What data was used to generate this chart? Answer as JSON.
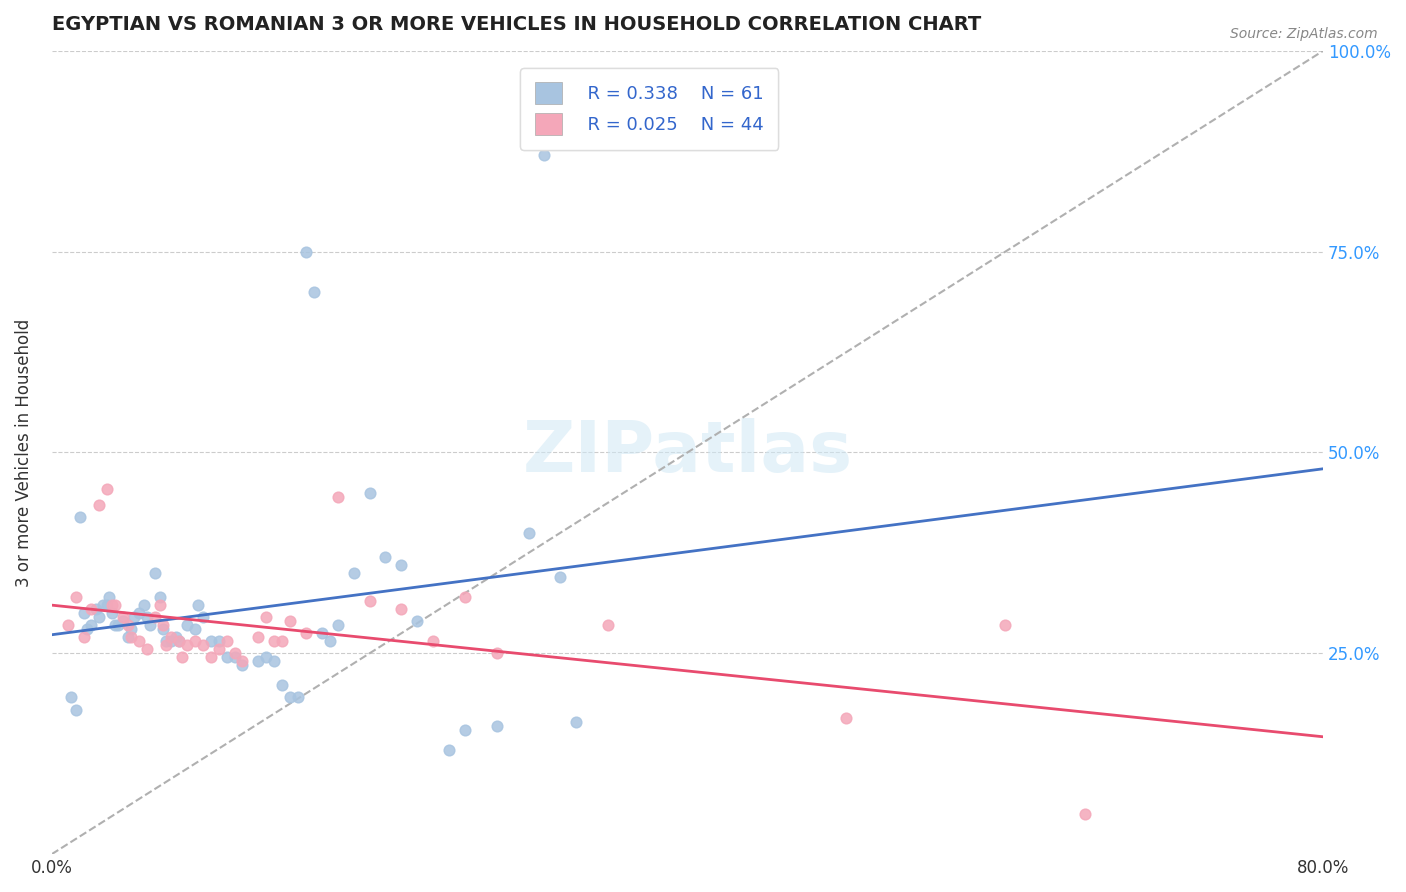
{
  "title": "EGYPTIAN VS ROMANIAN 3 OR MORE VEHICLES IN HOUSEHOLD CORRELATION CHART",
  "source_text": "Source: ZipAtlas.com",
  "xlabel": "",
  "ylabel": "3 or more Vehicles in Household",
  "xlim": [
    0.0,
    0.8
  ],
  "ylim": [
    0.0,
    1.0
  ],
  "xtick_labels": [
    "0.0%",
    "80.0%"
  ],
  "ytick_labels": [
    "25.0%",
    "50.0%",
    "75.0%",
    "100.0%"
  ],
  "ytick_positions": [
    0.25,
    0.5,
    0.75,
    1.0
  ],
  "xtick_positions": [
    0.0,
    0.8
  ],
  "watermark": "ZIPatlas",
  "legend_r1": "R = 0.338",
  "legend_n1": "N = 61",
  "legend_r2": "R = 0.025",
  "legend_n2": "N = 44",
  "egyptian_color": "#a8c4e0",
  "romanian_color": "#f4a7b9",
  "egyptian_line_color": "#4472c4",
  "romanian_line_color": "#e84b6e",
  "trendline_color": "#b0b0b0",
  "background_color": "#ffffff",
  "egyptian_scatter": [
    [
      0.012,
      0.195
    ],
    [
      0.015,
      0.18
    ],
    [
      0.018,
      0.42
    ],
    [
      0.02,
      0.3
    ],
    [
      0.022,
      0.28
    ],
    [
      0.025,
      0.285
    ],
    [
      0.028,
      0.305
    ],
    [
      0.03,
      0.295
    ],
    [
      0.032,
      0.31
    ],
    [
      0.035,
      0.31
    ],
    [
      0.036,
      0.32
    ],
    [
      0.038,
      0.3
    ],
    [
      0.04,
      0.285
    ],
    [
      0.042,
      0.285
    ],
    [
      0.045,
      0.29
    ],
    [
      0.048,
      0.27
    ],
    [
      0.05,
      0.28
    ],
    [
      0.052,
      0.295
    ],
    [
      0.055,
      0.3
    ],
    [
      0.058,
      0.31
    ],
    [
      0.06,
      0.295
    ],
    [
      0.062,
      0.285
    ],
    [
      0.065,
      0.35
    ],
    [
      0.068,
      0.32
    ],
    [
      0.07,
      0.28
    ],
    [
      0.072,
      0.265
    ],
    [
      0.075,
      0.265
    ],
    [
      0.078,
      0.27
    ],
    [
      0.08,
      0.265
    ],
    [
      0.085,
      0.285
    ],
    [
      0.09,
      0.28
    ],
    [
      0.092,
      0.31
    ],
    [
      0.095,
      0.295
    ],
    [
      0.1,
      0.265
    ],
    [
      0.105,
      0.265
    ],
    [
      0.11,
      0.245
    ],
    [
      0.115,
      0.245
    ],
    [
      0.12,
      0.235
    ],
    [
      0.13,
      0.24
    ],
    [
      0.135,
      0.245
    ],
    [
      0.14,
      0.24
    ],
    [
      0.145,
      0.21
    ],
    [
      0.15,
      0.195
    ],
    [
      0.155,
      0.195
    ],
    [
      0.16,
      0.75
    ],
    [
      0.165,
      0.7
    ],
    [
      0.17,
      0.275
    ],
    [
      0.175,
      0.265
    ],
    [
      0.18,
      0.285
    ],
    [
      0.19,
      0.35
    ],
    [
      0.2,
      0.45
    ],
    [
      0.21,
      0.37
    ],
    [
      0.22,
      0.36
    ],
    [
      0.23,
      0.29
    ],
    [
      0.25,
      0.13
    ],
    [
      0.26,
      0.155
    ],
    [
      0.28,
      0.16
    ],
    [
      0.3,
      0.4
    ],
    [
      0.31,
      0.87
    ],
    [
      0.32,
      0.345
    ],
    [
      0.33,
      0.165
    ]
  ],
  "romanian_scatter": [
    [
      0.01,
      0.285
    ],
    [
      0.015,
      0.32
    ],
    [
      0.02,
      0.27
    ],
    [
      0.025,
      0.305
    ],
    [
      0.03,
      0.435
    ],
    [
      0.035,
      0.455
    ],
    [
      0.038,
      0.31
    ],
    [
      0.04,
      0.31
    ],
    [
      0.045,
      0.295
    ],
    [
      0.048,
      0.285
    ],
    [
      0.05,
      0.27
    ],
    [
      0.055,
      0.265
    ],
    [
      0.06,
      0.255
    ],
    [
      0.065,
      0.295
    ],
    [
      0.068,
      0.31
    ],
    [
      0.07,
      0.285
    ],
    [
      0.072,
      0.26
    ],
    [
      0.075,
      0.27
    ],
    [
      0.08,
      0.265
    ],
    [
      0.082,
      0.245
    ],
    [
      0.085,
      0.26
    ],
    [
      0.09,
      0.265
    ],
    [
      0.095,
      0.26
    ],
    [
      0.1,
      0.245
    ],
    [
      0.105,
      0.255
    ],
    [
      0.11,
      0.265
    ],
    [
      0.115,
      0.25
    ],
    [
      0.12,
      0.24
    ],
    [
      0.13,
      0.27
    ],
    [
      0.135,
      0.295
    ],
    [
      0.14,
      0.265
    ],
    [
      0.145,
      0.265
    ],
    [
      0.15,
      0.29
    ],
    [
      0.16,
      0.275
    ],
    [
      0.18,
      0.445
    ],
    [
      0.2,
      0.315
    ],
    [
      0.22,
      0.305
    ],
    [
      0.24,
      0.265
    ],
    [
      0.26,
      0.32
    ],
    [
      0.28,
      0.25
    ],
    [
      0.35,
      0.285
    ],
    [
      0.5,
      0.17
    ],
    [
      0.6,
      0.285
    ],
    [
      0.65,
      0.05
    ]
  ],
  "diagonal_line": [
    [
      0.0,
      0.0
    ],
    [
      0.8,
      1.0
    ]
  ]
}
